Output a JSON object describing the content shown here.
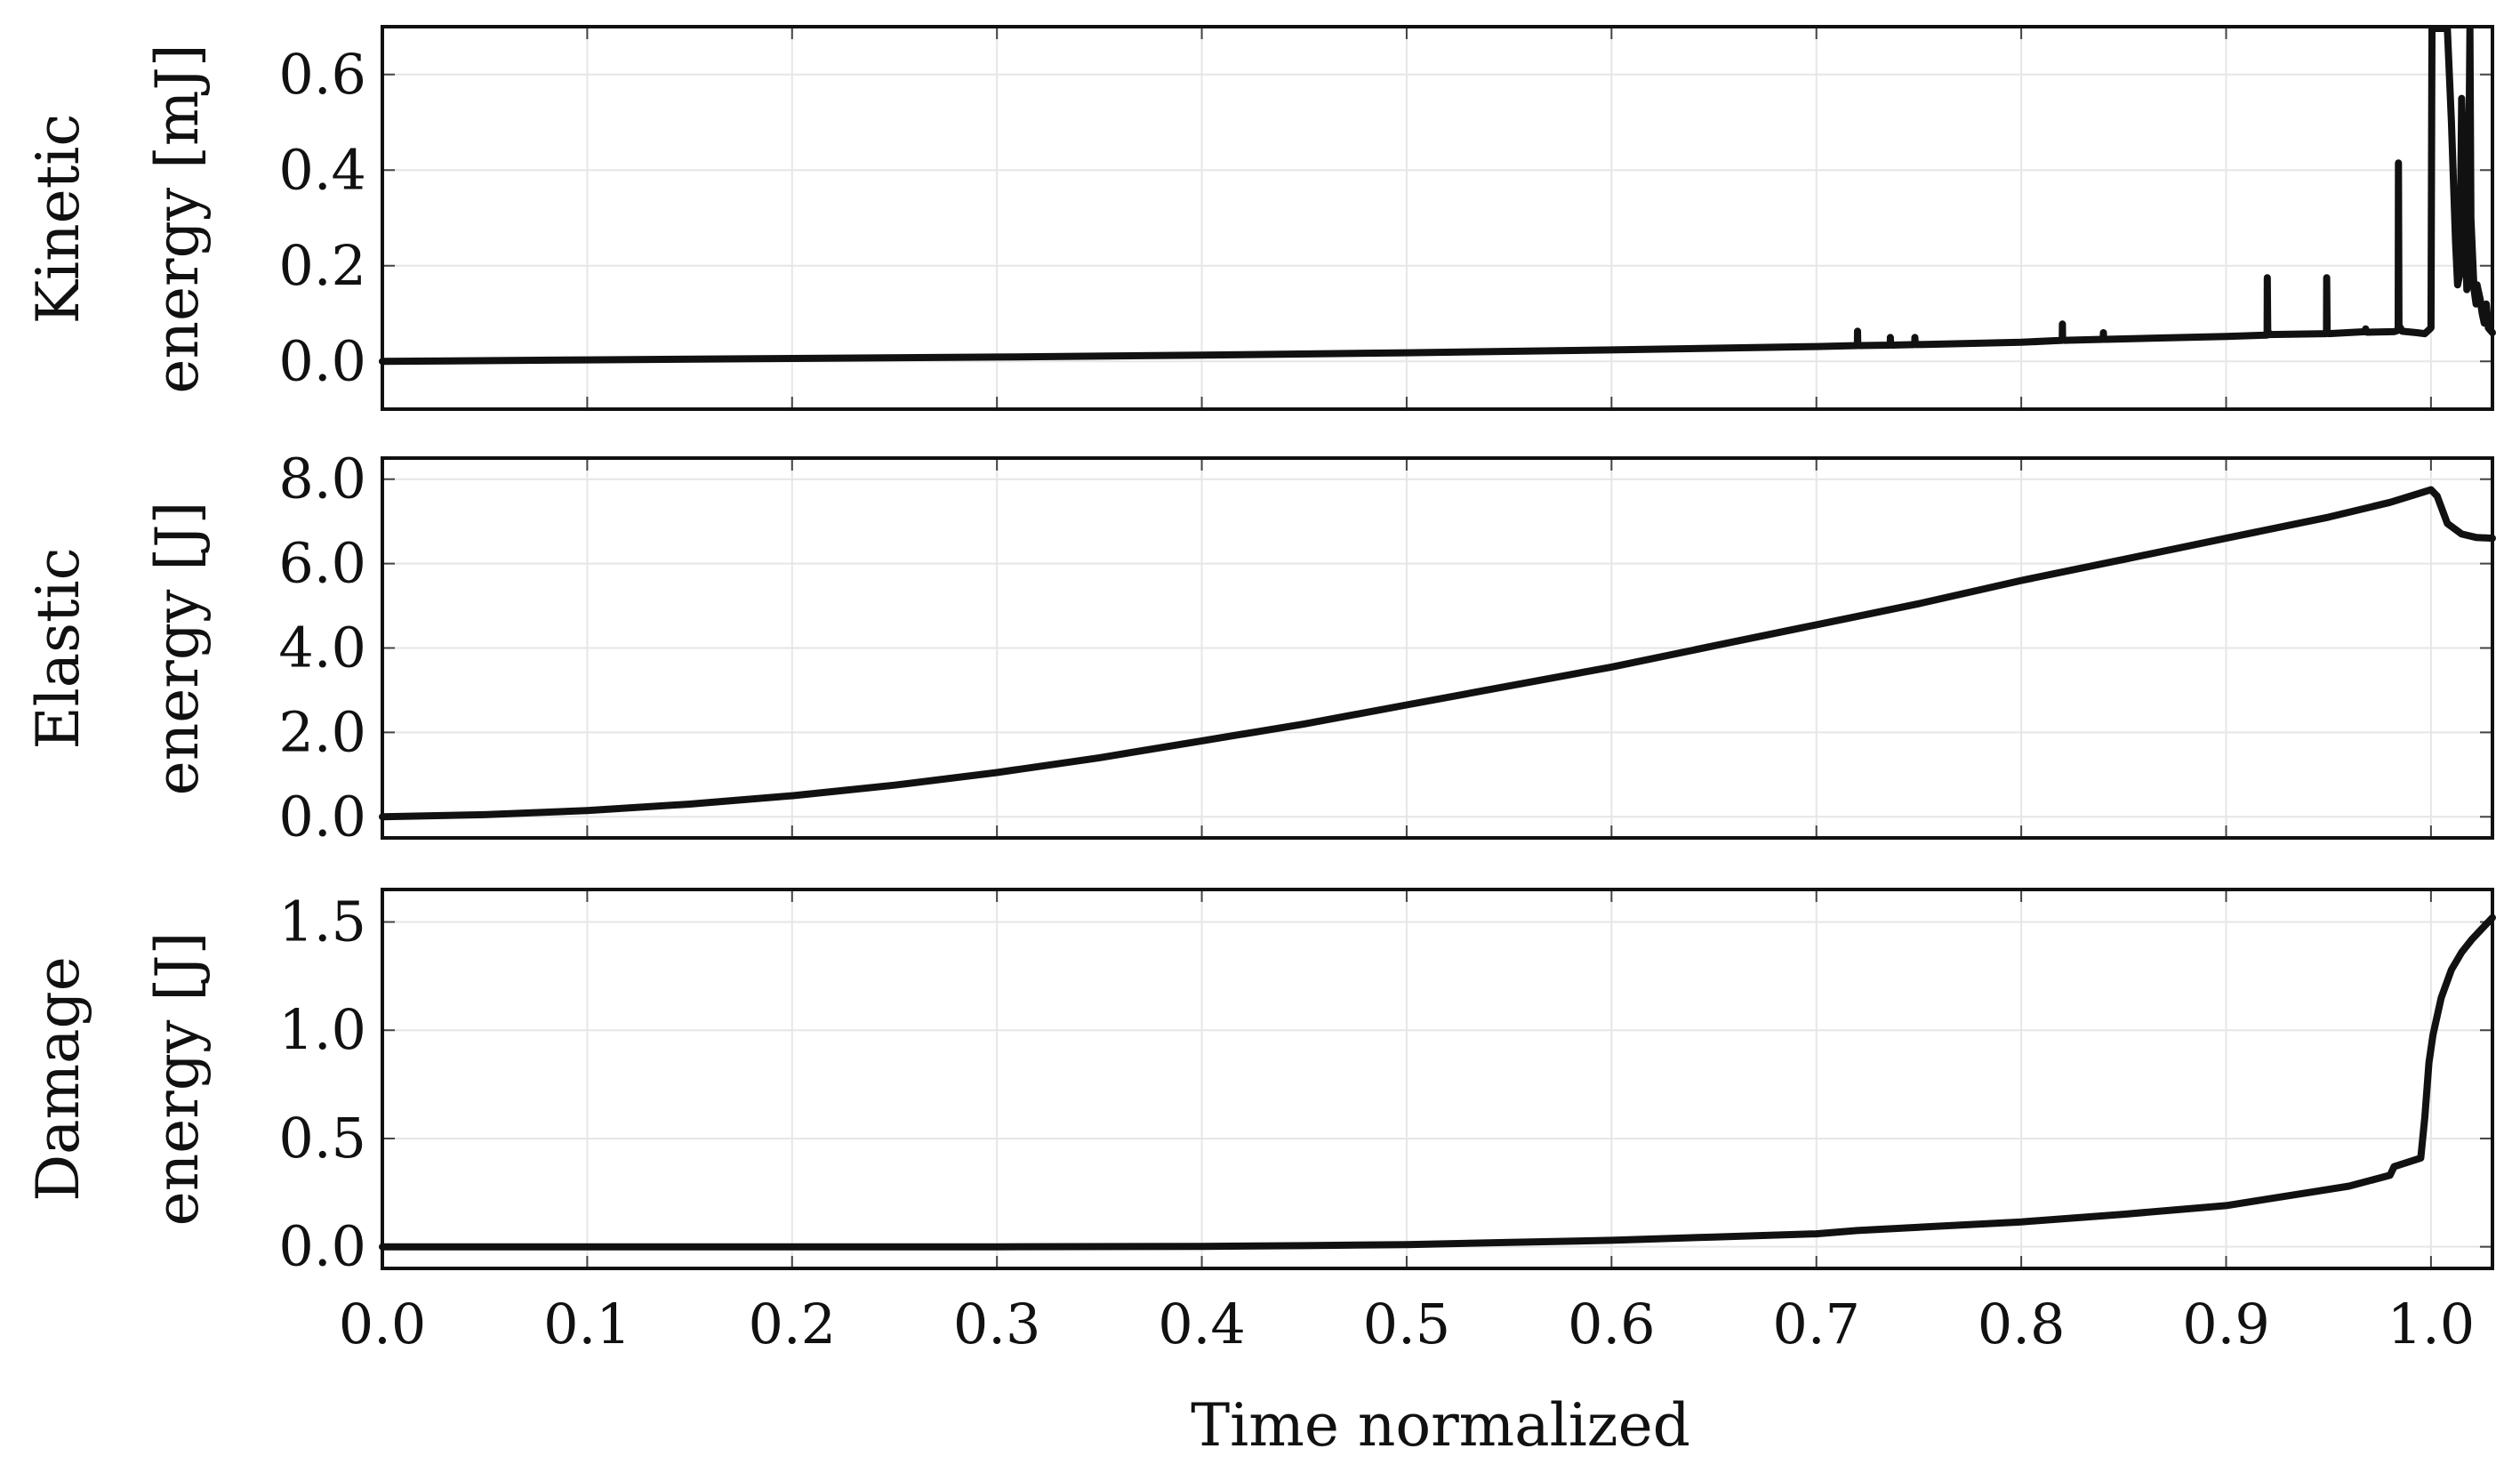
{
  "chart_data": [
    {
      "type": "line",
      "ylabel_line1": "Kinetic",
      "ylabel_line2": "energy [mJ]",
      "xlim": [
        0,
        1.03
      ],
      "ylim": [
        -0.1,
        0.7
      ],
      "grid": true,
      "xticks": [
        0,
        0.1,
        0.2,
        0.3,
        0.4,
        0.5,
        0.6,
        0.7,
        0.8,
        0.9,
        1.0
      ],
      "yticks": [
        0,
        0.2,
        0.4,
        0.6
      ],
      "ytick_labels": [
        "0.0",
        "0.2",
        "0.4",
        "0.6"
      ],
      "series": [
        {
          "x": [
            0,
            0.1,
            0.2,
            0.3,
            0.4,
            0.5,
            0.6,
            0.7,
            0.72,
            0.7201,
            0.7202,
            0.721,
            0.736,
            0.7361,
            0.7362,
            0.737,
            0.748,
            0.7481,
            0.7482,
            0.749,
            0.8,
            0.82,
            0.8201,
            0.8202,
            0.821,
            0.84,
            0.8401,
            0.8402,
            0.841,
            0.9,
            0.92,
            0.9201,
            0.9203,
            0.921,
            0.949,
            0.9491,
            0.9493,
            0.95,
            0.968,
            0.9681,
            0.9682,
            0.969,
            0.982,
            0.984,
            0.9841,
            0.9844,
            0.986,
            0.993,
            0.997,
            1.0,
            1.0005,
            1.004,
            1.005,
            1.007,
            1.008,
            1.01,
            1.012,
            1.013,
            1.014,
            1.0145,
            1.015,
            1.017,
            1.0175,
            1.018,
            1.019,
            1.0195,
            1.021,
            1.022,
            1.0225,
            1.024,
            1.025,
            1.026,
            1.027,
            1.028,
            1.03
          ],
          "y": [
            0,
            0.003,
            0.006,
            0.009,
            0.013,
            0.018,
            0.024,
            0.031,
            0.033,
            0.063,
            0.035,
            0.033,
            0.034,
            0.05,
            0.035,
            0.034,
            0.035,
            0.05,
            0.036,
            0.035,
            0.04,
            0.044,
            0.078,
            0.046,
            0.044,
            0.046,
            0.06,
            0.047,
            0.046,
            0.052,
            0.055,
            0.175,
            0.065,
            0.056,
            0.058,
            0.175,
            0.06,
            0.058,
            0.062,
            0.068,
            0.062,
            0.061,
            0.062,
            0.065,
            0.415,
            0.075,
            0.063,
            0.06,
            0.058,
            0.07,
            0.75,
            0.75,
            0.7,
            0.75,
            0.7,
            0.5,
            0.25,
            0.16,
            0.18,
            0.35,
            0.55,
            0.25,
            0.15,
            0.2,
            0.75,
            0.3,
            0.15,
            0.12,
            0.16,
            0.13,
            0.1,
            0.08,
            0.12,
            0.07,
            0.06
          ]
        }
      ]
    },
    {
      "type": "line",
      "ylabel_line1": "Elastic",
      "ylabel_line2": "energy [J]",
      "xlim": [
        0,
        1.03
      ],
      "ylim": [
        -0.5,
        8.5
      ],
      "grid": true,
      "xticks": [
        0,
        0.1,
        0.2,
        0.3,
        0.4,
        0.5,
        0.6,
        0.7,
        0.8,
        0.9,
        1.0
      ],
      "yticks": [
        0,
        2,
        4,
        6,
        8
      ],
      "ytick_labels": [
        "0.0",
        "2.0",
        "4.0",
        "6.0",
        "8.0"
      ],
      "series": [
        {
          "x": [
            0,
            0.05,
            0.1,
            0.15,
            0.2,
            0.25,
            0.3,
            0.35,
            0.4,
            0.45,
            0.5,
            0.55,
            0.6,
            0.65,
            0.7,
            0.75,
            0.8,
            0.85,
            0.9,
            0.95,
            0.98,
            1.0,
            1.003,
            1.008,
            1.015,
            1.022,
            1.03
          ],
          "y": [
            0,
            0.05,
            0.15,
            0.3,
            0.5,
            0.75,
            1.05,
            1.4,
            1.8,
            2.2,
            2.65,
            3.1,
            3.55,
            4.05,
            4.55,
            5.05,
            5.6,
            6.1,
            6.6,
            7.1,
            7.45,
            7.75,
            7.6,
            6.95,
            6.7,
            6.62,
            6.6
          ]
        }
      ]
    },
    {
      "type": "line",
      "ylabel_line1": "Damage",
      "ylabel_line2": "energy [J]",
      "xlabel": "Time normalized",
      "xlim": [
        0,
        1.03
      ],
      "ylim": [
        -0.1,
        1.65
      ],
      "grid": true,
      "xticks": [
        0,
        0.1,
        0.2,
        0.3,
        0.4,
        0.5,
        0.6,
        0.7,
        0.8,
        0.9,
        1.0
      ],
      "xtick_labels": [
        "0.0",
        "0.1",
        "0.2",
        "0.3",
        "0.4",
        "0.5",
        "0.6",
        "0.7",
        "0.8",
        "0.9",
        "1.0"
      ],
      "yticks": [
        0,
        0.5,
        1.0,
        1.5
      ],
      "ytick_labels": [
        "0.0",
        "0.5",
        "1.0",
        "1.5"
      ],
      "series": [
        {
          "x": [
            0,
            0.1,
            0.2,
            0.3,
            0.4,
            0.45,
            0.5,
            0.55,
            0.6,
            0.65,
            0.7,
            0.72,
            0.75,
            0.8,
            0.85,
            0.9,
            0.92,
            0.94,
            0.96,
            0.98,
            0.982,
            0.995,
            0.997,
            0.999,
            1.001,
            1.005,
            1.01,
            1.015,
            1.02,
            1.025,
            1.03
          ],
          "y": [
            0,
            0,
            0,
            0,
            0.002,
            0.005,
            0.01,
            0.02,
            0.03,
            0.045,
            0.06,
            0.075,
            0.09,
            0.115,
            0.15,
            0.19,
            0.22,
            0.25,
            0.28,
            0.33,
            0.37,
            0.41,
            0.6,
            0.85,
            0.98,
            1.15,
            1.28,
            1.36,
            1.42,
            1.47,
            1.52
          ]
        }
      ]
    }
  ]
}
